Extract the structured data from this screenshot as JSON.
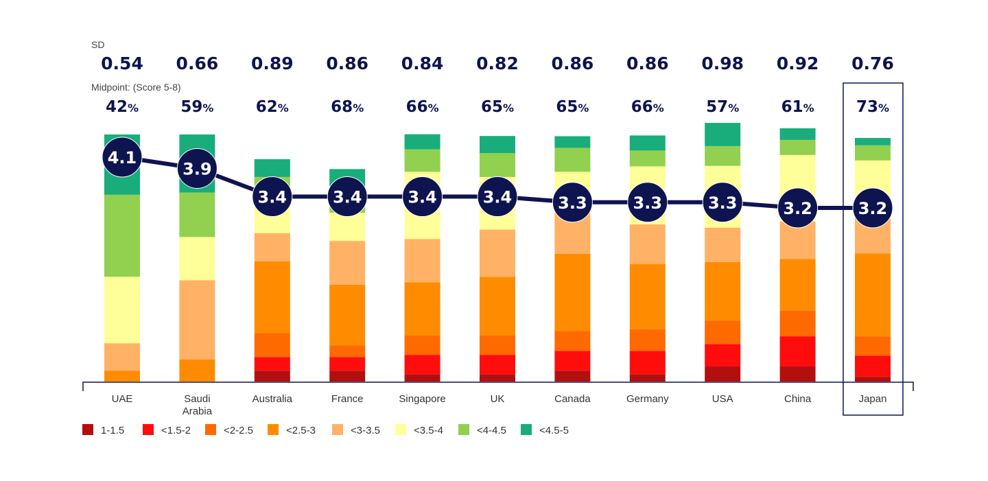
{
  "chart_data": {
    "type": "bar",
    "stacked": true,
    "sd_label": "SD",
    "midpoint_label": "Midpoint: (Score 5-8)",
    "highlight": "Japan",
    "categories": [
      {
        "label": "UAE",
        "sd": "0.54",
        "midpoint": "42",
        "mean": "4.1"
      },
      {
        "label": "Saudi\nArabia",
        "sd": "0.66",
        "midpoint": "59",
        "mean": "3.9"
      },
      {
        "label": "Australia",
        "sd": "0.89",
        "midpoint": "62",
        "mean": "3.4"
      },
      {
        "label": "France",
        "sd": "0.86",
        "midpoint": "68",
        "mean": "3.4"
      },
      {
        "label": "Singapore",
        "sd": "0.84",
        "midpoint": "66",
        "mean": "3.4"
      },
      {
        "label": "UK",
        "sd": "0.82",
        "midpoint": "65",
        "mean": "3.4"
      },
      {
        "label": "Canada",
        "sd": "0.86",
        "midpoint": "65",
        "mean": "3.3"
      },
      {
        "label": "Germany",
        "sd": "0.86",
        "midpoint": "66",
        "mean": "3.3"
      },
      {
        "label": "USA",
        "sd": "0.98",
        "midpoint": "57",
        "mean": "3.3"
      },
      {
        "label": "China",
        "sd": "0.92",
        "midpoint": "61",
        "mean": "3.2"
      },
      {
        "label": "Japan",
        "sd": "0.76",
        "midpoint": "73",
        "mean": "3.2"
      }
    ],
    "series": [
      {
        "name": "1-1.5",
        "color": "#b30f0f",
        "values": [
          0,
          0,
          4.4,
          4.4,
          3.0,
          3.0,
          4.4,
          3.0,
          6.1,
          6.1,
          1.9
        ]
      },
      {
        "name": "<1.5-2",
        "color": "#ff0d0d",
        "values": [
          0,
          0,
          5.5,
          5.5,
          7.8,
          7.8,
          8.0,
          9.4,
          9.1,
          12.2,
          8.6
        ]
      },
      {
        "name": "<2-2.5",
        "color": "#ff6a00",
        "values": [
          0,
          0,
          9.7,
          4.7,
          7.8,
          7.8,
          8.0,
          8.8,
          9.4,
          10.5,
          7.8
        ]
      },
      {
        "name": "<2.5-3",
        "color": "#ff8c00",
        "values": [
          4.4,
          8.9,
          29.1,
          24.6,
          21.6,
          23.8,
          31.3,
          26.3,
          23.8,
          20.8,
          33.5
        ]
      },
      {
        "name": "<3-3.5",
        "color": "#ffb266",
        "values": [
          11.1,
          32.1,
          11.4,
          17.7,
          17.5,
          19.1,
          16.6,
          16.1,
          13.9,
          15.2,
          15.5
        ]
      },
      {
        "name": "<3.5-4",
        "color": "#ffff99",
        "values": [
          26.9,
          17.5,
          11.9,
          11.4,
          27.2,
          21.3,
          16.6,
          23.5,
          25.0,
          26.9,
          22.2
        ]
      },
      {
        "name": "<4-4.5",
        "color": "#92d050",
        "values": [
          33.2,
          18.0,
          10.8,
          10.8,
          9.1,
          9.7,
          9.7,
          6.4,
          8.0,
          6.1,
          6.1
        ]
      },
      {
        "name": "<4.5-5",
        "color": "#19ad7c",
        "values": [
          24.4,
          23.5,
          7.2,
          6.9,
          6.1,
          6.9,
          4.7,
          6.1,
          9.4,
          4.7,
          3.0
        ]
      }
    ],
    "ylim": [
      0,
      100
    ]
  }
}
